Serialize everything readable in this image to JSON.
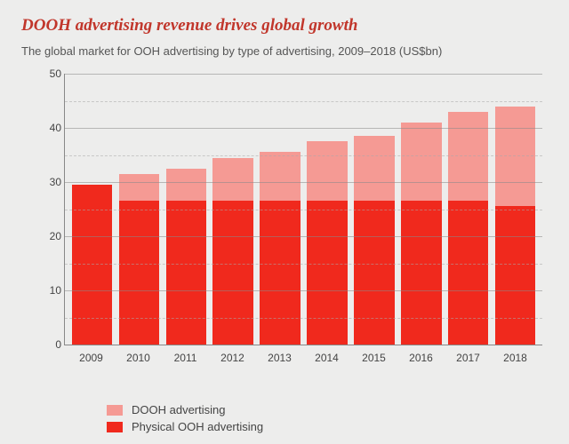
{
  "title": "DOOH advertising revenue drives global growth",
  "subtitle": "The global market for OOH advertising by type of advertising, 2009–2018 (US$bn)",
  "chart": {
    "type": "stacked-bar",
    "background_color": "#ededec",
    "title_color": "#c1362b",
    "categories": [
      "2009",
      "2010",
      "2011",
      "2012",
      "2013",
      "2014",
      "2015",
      "2016",
      "2017",
      "2018"
    ],
    "series": [
      {
        "name": "Physical OOH advertising",
        "color": "#f0291d",
        "values": [
          29.5,
          26.5,
          26.5,
          26.5,
          26.5,
          26.5,
          26.5,
          26.5,
          26.5,
          25.5
        ]
      },
      {
        "name": "DOOH advertising",
        "color": "#f59a94",
        "values": [
          0,
          5.0,
          6.0,
          8.0,
          9.0,
          11.0,
          12.0,
          14.5,
          16.5,
          18.5
        ]
      }
    ],
    "y_axis": {
      "min": 0,
      "max": 50,
      "tick_step": 10,
      "minor_step": 5
    },
    "axis_color": "#888",
    "grid_color": "#888",
    "minor_grid_color": "#aaa",
    "label_fontsize": 12,
    "bar_width_pct": 86
  },
  "legend": {
    "items": [
      {
        "label": "DOOH advertising",
        "color": "#f59a94"
      },
      {
        "label": "Physical OOH advertising",
        "color": "#f0291d"
      }
    ]
  }
}
